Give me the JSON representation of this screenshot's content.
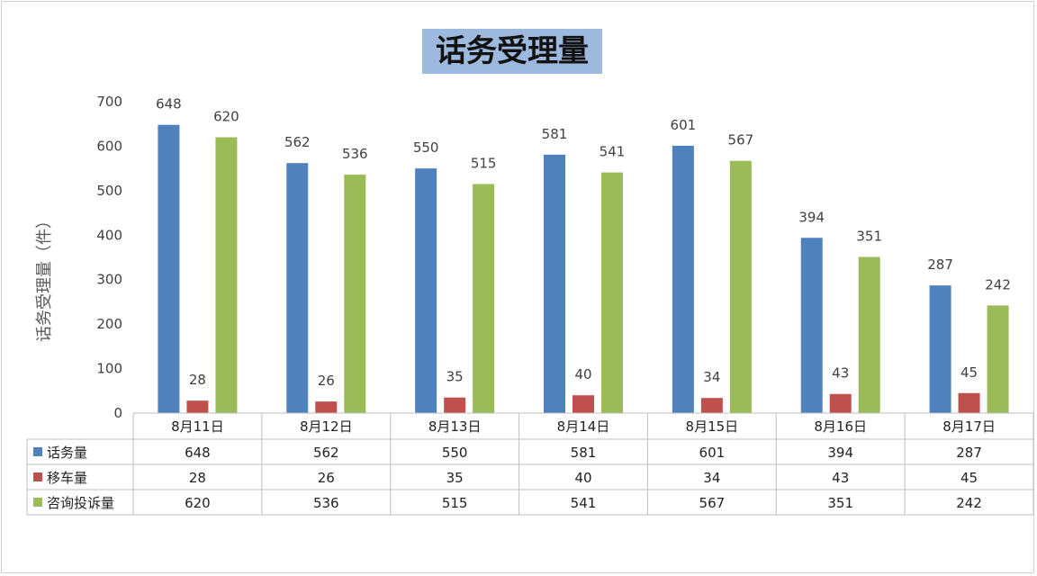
{
  "chart_data": {
    "type": "bar",
    "title": "话务受理量",
    "xlabel": "",
    "ylabel": "话务受理量（件）",
    "ylim": [
      0,
      700
    ],
    "yticks": [
      0,
      100,
      200,
      300,
      400,
      500,
      600,
      700
    ],
    "categories": [
      "8月11日",
      "8月12日",
      "8月13日",
      "8月14日",
      "8月15日",
      "8月16日",
      "8月17日"
    ],
    "series": [
      {
        "name": "话务量",
        "color": "#4f81bd",
        "values": [
          648,
          562,
          550,
          581,
          601,
          394,
          287
        ]
      },
      {
        "name": "移车量",
        "color": "#c0504d",
        "values": [
          28,
          26,
          35,
          40,
          34,
          43,
          45
        ]
      },
      {
        "name": "咨询投诉量",
        "color": "#9bbb59",
        "values": [
          620,
          536,
          515,
          541,
          567,
          351,
          242
        ]
      }
    ],
    "grid": false,
    "legend": "data-table",
    "data_table": true
  }
}
